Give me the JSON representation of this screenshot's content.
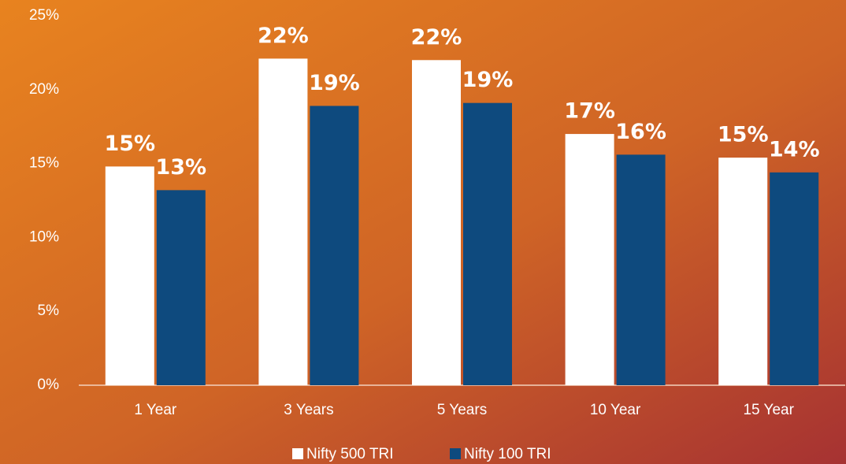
{
  "chart_data": {
    "type": "bar",
    "categories": [
      "1 Year",
      "3 Years",
      "5 Years",
      "10 Year",
      "15 Year"
    ],
    "series": [
      {
        "name": "Nifty 500 TRI",
        "color": "#ffffff",
        "values": [
          14.8,
          22.1,
          22.0,
          17.0,
          15.4
        ],
        "value_labels": [
          "15%",
          "22%",
          "22%",
          "17%",
          "15%"
        ]
      },
      {
        "name": "Nifty 100 TRI",
        "color": "#0e4a7e",
        "values": [
          13.2,
          18.9,
          19.1,
          15.6,
          14.4
        ],
        "value_labels": [
          "13%",
          "19%",
          "19%",
          "16%",
          "14%"
        ]
      }
    ],
    "ylim": [
      0,
      25
    ],
    "yticks": [
      {
        "value": 0,
        "label": "0%"
      },
      {
        "value": 5,
        "label": "5%"
      },
      {
        "value": 10,
        "label": "10%"
      },
      {
        "value": 15,
        "label": "15%"
      },
      {
        "value": 20,
        "label": "20%"
      },
      {
        "value": 25,
        "label": "25%"
      }
    ],
    "grid": false,
    "legend": "bottom"
  }
}
